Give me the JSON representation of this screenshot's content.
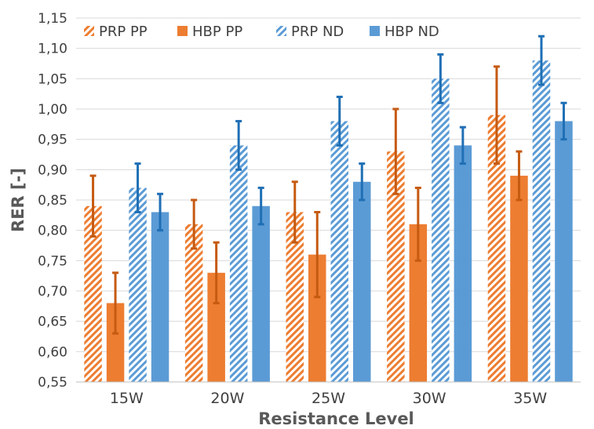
{
  "chart_data": {
    "type": "bar",
    "title": "",
    "xlabel": "Resistance Level",
    "ylabel": "RER [-]",
    "ylim": [
      0.55,
      1.15
    ],
    "ytick_step": 0.05,
    "ytick_labels": [
      "0,55",
      "0,60",
      "0,65",
      "0,70",
      "0,75",
      "0,80",
      "0,85",
      "0,90",
      "0,95",
      "1,00",
      "1,05",
      "1,10",
      "1,15"
    ],
    "grid": true,
    "legend_position": "top",
    "categories": [
      "15W",
      "20W",
      "25W",
      "30W",
      "35W"
    ],
    "series": [
      {
        "name": "PRP PP",
        "color": "#ED7D31",
        "pattern": "hatched",
        "values": [
          0.84,
          0.81,
          0.83,
          0.93,
          0.99
        ],
        "error_high": [
          0.89,
          0.85,
          0.88,
          1.0,
          1.07
        ],
        "error_low": [
          0.79,
          0.77,
          0.78,
          0.86,
          0.91
        ]
      },
      {
        "name": "HBP PP",
        "color": "#ED7D31",
        "pattern": "solid",
        "values": [
          0.68,
          0.73,
          0.76,
          0.81,
          0.89
        ],
        "error_high": [
          0.73,
          0.78,
          0.83,
          0.87,
          0.93
        ],
        "error_low": [
          0.63,
          0.68,
          0.69,
          0.75,
          0.85
        ]
      },
      {
        "name": "PRP ND",
        "color": "#5B9BD5",
        "pattern": "hatched",
        "values": [
          0.87,
          0.94,
          0.98,
          1.05,
          1.08
        ],
        "error_high": [
          0.91,
          0.98,
          1.02,
          1.09,
          1.12
        ],
        "error_low": [
          0.83,
          0.9,
          0.94,
          1.01,
          1.04
        ]
      },
      {
        "name": "HBP ND",
        "color": "#5B9BD5",
        "pattern": "solid",
        "values": [
          0.83,
          0.84,
          0.88,
          0.94,
          0.98
        ],
        "error_high": [
          0.86,
          0.87,
          0.91,
          0.97,
          1.01
        ],
        "error_low": [
          0.8,
          0.81,
          0.85,
          0.91,
          0.95
        ]
      }
    ],
    "error_bar_colors": {
      "PP": "#C55A11",
      "ND": "#1F6FB5"
    }
  }
}
